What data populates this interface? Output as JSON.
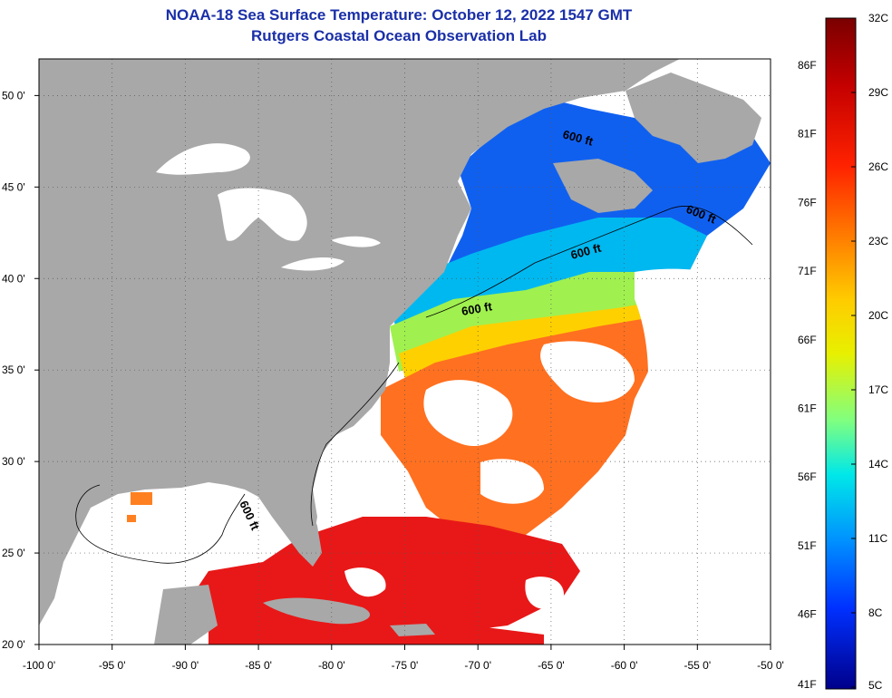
{
  "header": {
    "title": "NOAA-18 Sea Surface Temperature:  October 12, 2022 1547 GMT",
    "subtitle": "Rutgers Coastal Ocean Observation Lab"
  },
  "map": {
    "lon_range": [
      -100,
      -50
    ],
    "lat_range": [
      20,
      52
    ],
    "lon_ticks": [
      {
        "value": -100,
        "label": "-100 0'"
      },
      {
        "value": -95,
        "label": "-95 0'"
      },
      {
        "value": -90,
        "label": "-90 0'"
      },
      {
        "value": -85,
        "label": "-85 0'"
      },
      {
        "value": -80,
        "label": "-80 0'"
      },
      {
        "value": -75,
        "label": "-75 0'"
      },
      {
        "value": -70,
        "label": "-70 0'"
      },
      {
        "value": -65,
        "label": "-65 0'"
      },
      {
        "value": -60,
        "label": "-60 0'"
      },
      {
        "value": -55,
        "label": "-55 0'"
      },
      {
        "value": -50,
        "label": "-50 0'"
      }
    ],
    "lat_ticks": [
      {
        "value": 50,
        "label": "50 0'"
      },
      {
        "value": 45,
        "label": "45 0'"
      },
      {
        "value": 40,
        "label": "40 0'"
      },
      {
        "value": 35,
        "label": "35 0'"
      },
      {
        "value": 30,
        "label": "30 0'"
      },
      {
        "value": 25,
        "label": "25 0'"
      },
      {
        "value": 20,
        "label": "20 0'"
      }
    ],
    "contour_label": "600 ft",
    "colors": {
      "land": "#a8a8a8",
      "cloud": "#ffffff",
      "grid": "#555555"
    }
  },
  "colorbar": {
    "min_c": 5,
    "max_c": 32,
    "fahrenheit_labels": [
      "86F",
      "81F",
      "76F",
      "71F",
      "66F",
      "61F",
      "56F",
      "51F",
      "46F",
      "41F"
    ],
    "celsius_labels": [
      "32C",
      "29C",
      "26C",
      "23C",
      "20C",
      "17C",
      "14C",
      "11C",
      "8C",
      "5C"
    ],
    "gradient_colors": [
      "#7a0000",
      "#c40000",
      "#ff2200",
      "#ff8000",
      "#ffcc00",
      "#e8f000",
      "#80ff80",
      "#00e8e8",
      "#0090ff",
      "#0030ff",
      "#00008a"
    ]
  }
}
